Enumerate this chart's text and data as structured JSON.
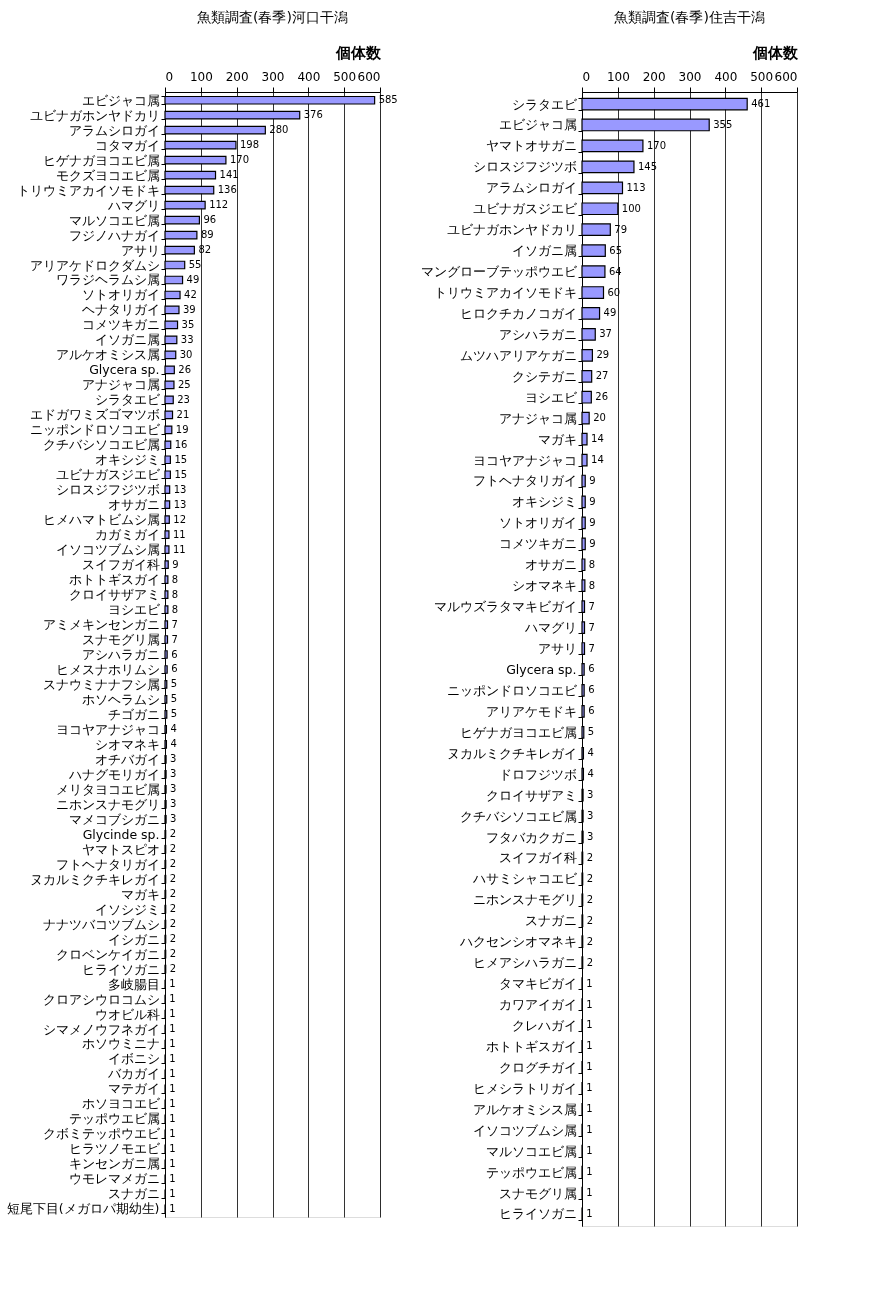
{
  "chart_data": [
    {
      "type": "bar",
      "orientation": "horizontal",
      "title": "魚類調査(春季)河口干潟",
      "xlabel": "個体数",
      "color": "#9999ff",
      "xlim": [
        0,
        600
      ],
      "xticks": [
        0,
        100,
        200,
        300,
        400,
        500,
        600
      ],
      "grid": "x",
      "data_labels": true,
      "categories": [
        "エビジャコ属",
        "ユビナガホンヤドカリ",
        "アラムシロガイ",
        "コタマガイ",
        "ヒゲナガヨコエビ属",
        "モクズヨコエビ属",
        "トリウミアカイソモドキ",
        "ハマグリ",
        "マルソコエビ属",
        "フジノハナガイ",
        "アサリ",
        "アリアケドロクダムシ",
        "ワラジヘラムシ属",
        "ソトオリガイ",
        "ヘナタリガイ",
        "コメツキガニ",
        "イソガニ属",
        "アルケオミシス属",
        "Glycera sp.",
        "アナジャコ属",
        "シラタエビ",
        "エドガワミズゴマツボ",
        "ニッポンドロソコエビ",
        "クチバシソコエビ属",
        "オキシジミ",
        "ユビナガスジエビ",
        "シロスジフジツボ",
        "オサガニ",
        "ヒメハマトビムシ属",
        "カガミガイ",
        "イソコツブムシ属",
        "スイフガイ科",
        "ホトトギスガイ",
        "クロイサザアミ",
        "ヨシエビ",
        "アミメキンセンガニ",
        "スナモグリ属",
        "アシハラガニ",
        "ヒメスナホリムシ",
        "スナウミナナフシ属",
        "ホソヘラムシ",
        "チゴガニ",
        "ヨコヤアナジャコ",
        "シオマネキ",
        "オチバガイ",
        "ハナグモリガイ",
        "メリタヨコエビ属",
        "ニホンスナモグリ",
        "マメコブシガニ",
        "Glycinde sp.",
        "ヤマトスピオ",
        "フトヘナタリガイ",
        "ヌカルミクチキレガイ",
        "マガキ",
        "イソシジミ",
        "ナナツバコツブムシ",
        "イシガニ",
        "クロベンケイガニ",
        "ヒライソガニ",
        "多岐腸目",
        "クロアシウロコムシ",
        "ウオビル科",
        "シマメノウフネガイ",
        "ホソウミニナ",
        "イボニシ",
        "バカガイ",
        "マテガイ",
        "ホソヨコエビ",
        "テッポウエビ属",
        "クボミテッポウエビ",
        "ヒラツノモエビ",
        "キンセンガニ属",
        "ウモレマメガニ",
        "スナガニ",
        "短尾下目(メガロパ期幼生)"
      ],
      "values": [
        585,
        376,
        280,
        198,
        170,
        141,
        136,
        112,
        96,
        89,
        82,
        55,
        49,
        42,
        39,
        35,
        33,
        30,
        26,
        25,
        23,
        21,
        19,
        16,
        15,
        15,
        13,
        13,
        12,
        11,
        11,
        9,
        8,
        8,
        8,
        7,
        7,
        6,
        6,
        5,
        5,
        5,
        4,
        4,
        3,
        3,
        3,
        3,
        3,
        2,
        2,
        2,
        2,
        2,
        2,
        2,
        2,
        2,
        2,
        1,
        1,
        1,
        1,
        1,
        1,
        1,
        1,
        1,
        1,
        1,
        1,
        1,
        1,
        1,
        1
      ]
    },
    {
      "type": "bar",
      "orientation": "horizontal",
      "title": "魚類調査(春季)住吉干潟",
      "xlabel": "個体数",
      "color": "#9999ff",
      "xlim": [
        0,
        600
      ],
      "xticks": [
        0,
        100,
        200,
        300,
        400,
        500,
        600
      ],
      "grid": "x",
      "data_labels": true,
      "categories": [
        "シラタエビ",
        "エビジャコ属",
        "ヤマトオサガニ",
        "シロスジフジツボ",
        "アラムシロガイ",
        "ユビナガスジエビ",
        "ユビナガホンヤドカリ",
        "イソガニ属",
        "マングローブテッポウエビ",
        "トリウミアカイソモドキ",
        "ヒロクチカノコガイ",
        "アシハラガニ",
        "ムツハアリアケガニ",
        "クシテガニ",
        "ヨシエビ",
        "アナジャコ属",
        "マガキ",
        "ヨコヤアナジャコ",
        "フトヘナタリガイ",
        "オキシジミ",
        "ソトオリガイ",
        "コメツキガニ",
        "オサガニ",
        "シオマネキ",
        "マルウズラタマキビガイ",
        "ハマグリ",
        "アサリ",
        "Glycera sp.",
        "ニッポンドロソコエビ",
        "アリアケモドキ",
        "ヒゲナガヨコエビ属",
        "ヌカルミクチキレガイ",
        "ドロフジツボ",
        "クロイサザアミ",
        "クチバシソコエビ属",
        "フタバカクガニ",
        "スイフガイ科",
        "ハサミシャコエビ",
        "ニホンスナモグリ",
        "スナガニ",
        "ハクセンシオマネキ",
        "ヒメアシハラガニ",
        "タマキビガイ",
        "カワアイガイ",
        "クレハガイ",
        "ホトトギスガイ",
        "クログチガイ",
        "ヒメシラトリガイ",
        "アルケオミシス属",
        "イソコツブムシ属",
        "マルソコエビ属",
        "テッポウエビ属",
        "スナモグリ属",
        "ヒライソガニ"
      ],
      "values": [
        461,
        355,
        170,
        145,
        113,
        100,
        79,
        65,
        64,
        60,
        49,
        37,
        29,
        27,
        26,
        20,
        14,
        14,
        9,
        9,
        9,
        9,
        8,
        8,
        7,
        7,
        7,
        6,
        6,
        6,
        5,
        4,
        4,
        3,
        3,
        3,
        2,
        2,
        2,
        2,
        2,
        2,
        1,
        1,
        1,
        1,
        1,
        1,
        1,
        1,
        1,
        1,
        1,
        1
      ]
    }
  ]
}
